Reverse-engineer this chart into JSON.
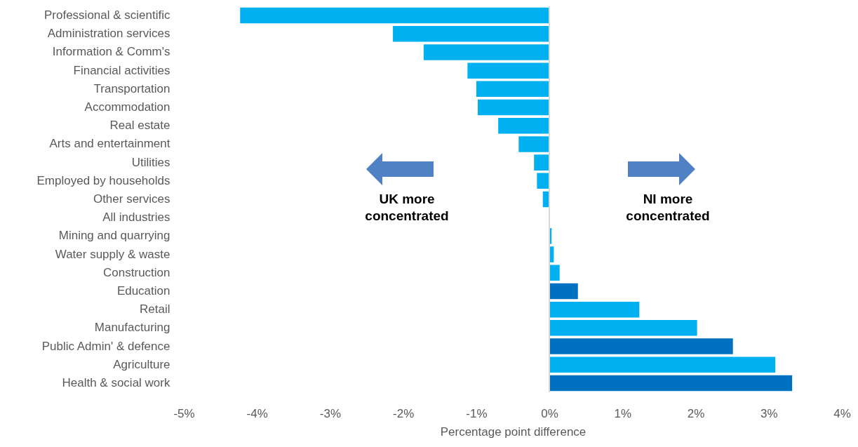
{
  "chart_data": {
    "type": "bar",
    "orientation": "horizontal",
    "xlabel": "Percentage point difference",
    "categories": [
      "Professional & scientific",
      "Administration services",
      "Information & Comm's",
      "Financial activities",
      "Transportation ",
      "Accommodation",
      "Real estate",
      "Arts and entertainment",
      "Utilities",
      "Employed by households",
      "Other services",
      "All industries",
      "Mining and quarrying",
      "Water supply & waste ",
      "Construction",
      "Education",
      "Retail",
      "Manufacturing",
      "Public Admin' & defence",
      "Agriculture",
      "Health & social work"
    ],
    "values": [
      -4.23,
      -2.14,
      -1.72,
      -1.12,
      -1.0,
      -0.98,
      -0.7,
      -0.42,
      -0.21,
      -0.17,
      -0.09,
      0,
      0.03,
      0.06,
      0.14,
      0.39,
      1.23,
      2.02,
      2.51,
      3.09,
      3.32
    ],
    "colors": [
      "#00b0f0",
      "#00b0f0",
      "#00b0f0",
      "#00b0f0",
      "#00b0f0",
      "#00b0f0",
      "#00b0f0",
      "#00b0f0",
      "#00b0f0",
      "#00b0f0",
      "#00b0f0",
      "#00b0f0",
      "#00b0f0",
      "#00b0f0",
      "#00b0f0",
      "#0070c0",
      "#00b0f0",
      "#00b0f0",
      "#0070c0",
      "#00b0f0",
      "#0070c0"
    ],
    "xlim": [
      -5,
      4
    ],
    "xticks": [
      {
        "value": -5,
        "label": "-5%"
      },
      {
        "value": -4,
        "label": "-4%"
      },
      {
        "value": -3,
        "label": "-3%"
      },
      {
        "value": -2,
        "label": "-2%"
      },
      {
        "value": -1,
        "label": "-1%"
      },
      {
        "value": 0,
        "label": "0%"
      },
      {
        "value": 1,
        "label": "1%"
      },
      {
        "value": 2,
        "label": "2%"
      },
      {
        "value": 3,
        "label": "3%"
      },
      {
        "value": 4,
        "label": "4%"
      }
    ],
    "ref_lines": [
      {
        "axis": "x",
        "value": 0,
        "color": "#d9d9d9"
      }
    ],
    "annotations": [
      "UK more concentrated",
      "NI more concentrated"
    ]
  }
}
